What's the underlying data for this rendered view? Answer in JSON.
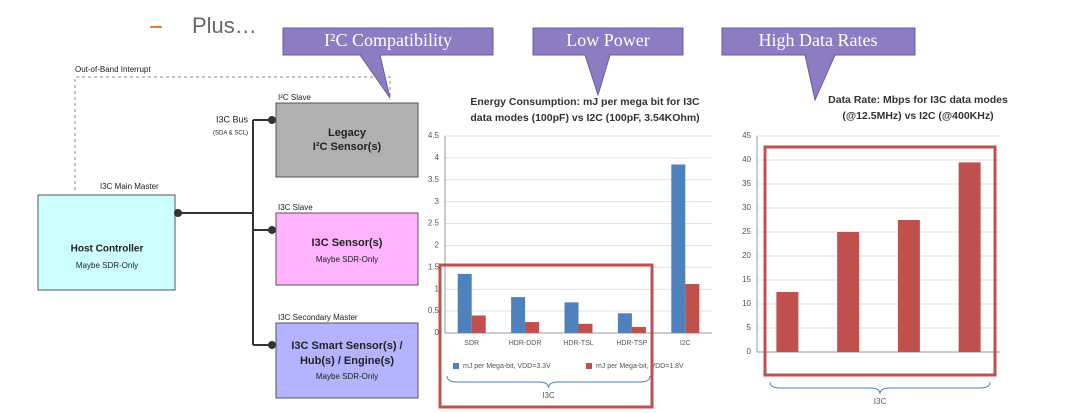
{
  "bullet": "Plus…",
  "callouts": [
    "I²C Compatibility",
    "Low Power",
    "High Data Rates"
  ],
  "diagram": {
    "interrupt_label": "Out-of-Band Interrupt",
    "master_label": "I3C Main Master",
    "master_box": [
      "Host Controller",
      "Maybe SDR-Only"
    ],
    "bus_label": [
      "I3C Bus",
      "(SDA & SCL)"
    ],
    "nodes": [
      {
        "role": "I²C Slave",
        "lines": [
          "Legacy",
          "I²C Sensor(s)"
        ]
      },
      {
        "role": "I3C Slave",
        "lines": [
          "I3C Sensor(s)",
          "Maybe SDR-Only"
        ]
      },
      {
        "role": "I3C Secondary Master",
        "lines": [
          "I3C Smart Sensor(s) /",
          "Hub(s) / Engine(s)",
          "Maybe SDR-Only"
        ]
      }
    ]
  },
  "chart_data": [
    {
      "type": "bar",
      "title": [
        "Energy Consumption: mJ per mega bit for I3C",
        "data modes (100pF) vs I2C (100pF, 3.54KOhm)"
      ],
      "categories": [
        "SDR",
        "HDR-DDR",
        "HDR-TSL",
        "HDR-TSP",
        "I2C"
      ],
      "series": [
        {
          "name": "mJ per Mega-bit, VDD=3.3V",
          "color": "#4f81bd",
          "values": [
            1.35,
            0.82,
            0.7,
            0.45,
            3.85
          ]
        },
        {
          "name": "mJ per Mega-bit, VDD=1.8V",
          "color": "#c0504d",
          "values": [
            0.4,
            0.25,
            0.21,
            0.14,
            1.12
          ]
        }
      ],
      "ylim": [
        0,
        4.5
      ],
      "yticks": [
        0,
        0.5,
        1,
        1.5,
        2,
        2.5,
        3,
        3.5,
        4,
        4.5
      ],
      "grid": true,
      "legend": "bottom",
      "annotation": "I3C"
    },
    {
      "type": "bar",
      "title": [
        "Data Rate: Mbps for I3C data modes",
        "(@12.5MHz) vs I2C (@400KHz)"
      ],
      "categories": [
        null,
        null,
        null,
        null
      ],
      "values": [
        12.5,
        25,
        27.5,
        39.5
      ],
      "color": "#c0504d",
      "ylim": [
        0,
        45
      ],
      "yticks": [
        0,
        5,
        10,
        15,
        20,
        25,
        30,
        35,
        40,
        45
      ],
      "grid": true,
      "annotation": "I3C"
    }
  ]
}
